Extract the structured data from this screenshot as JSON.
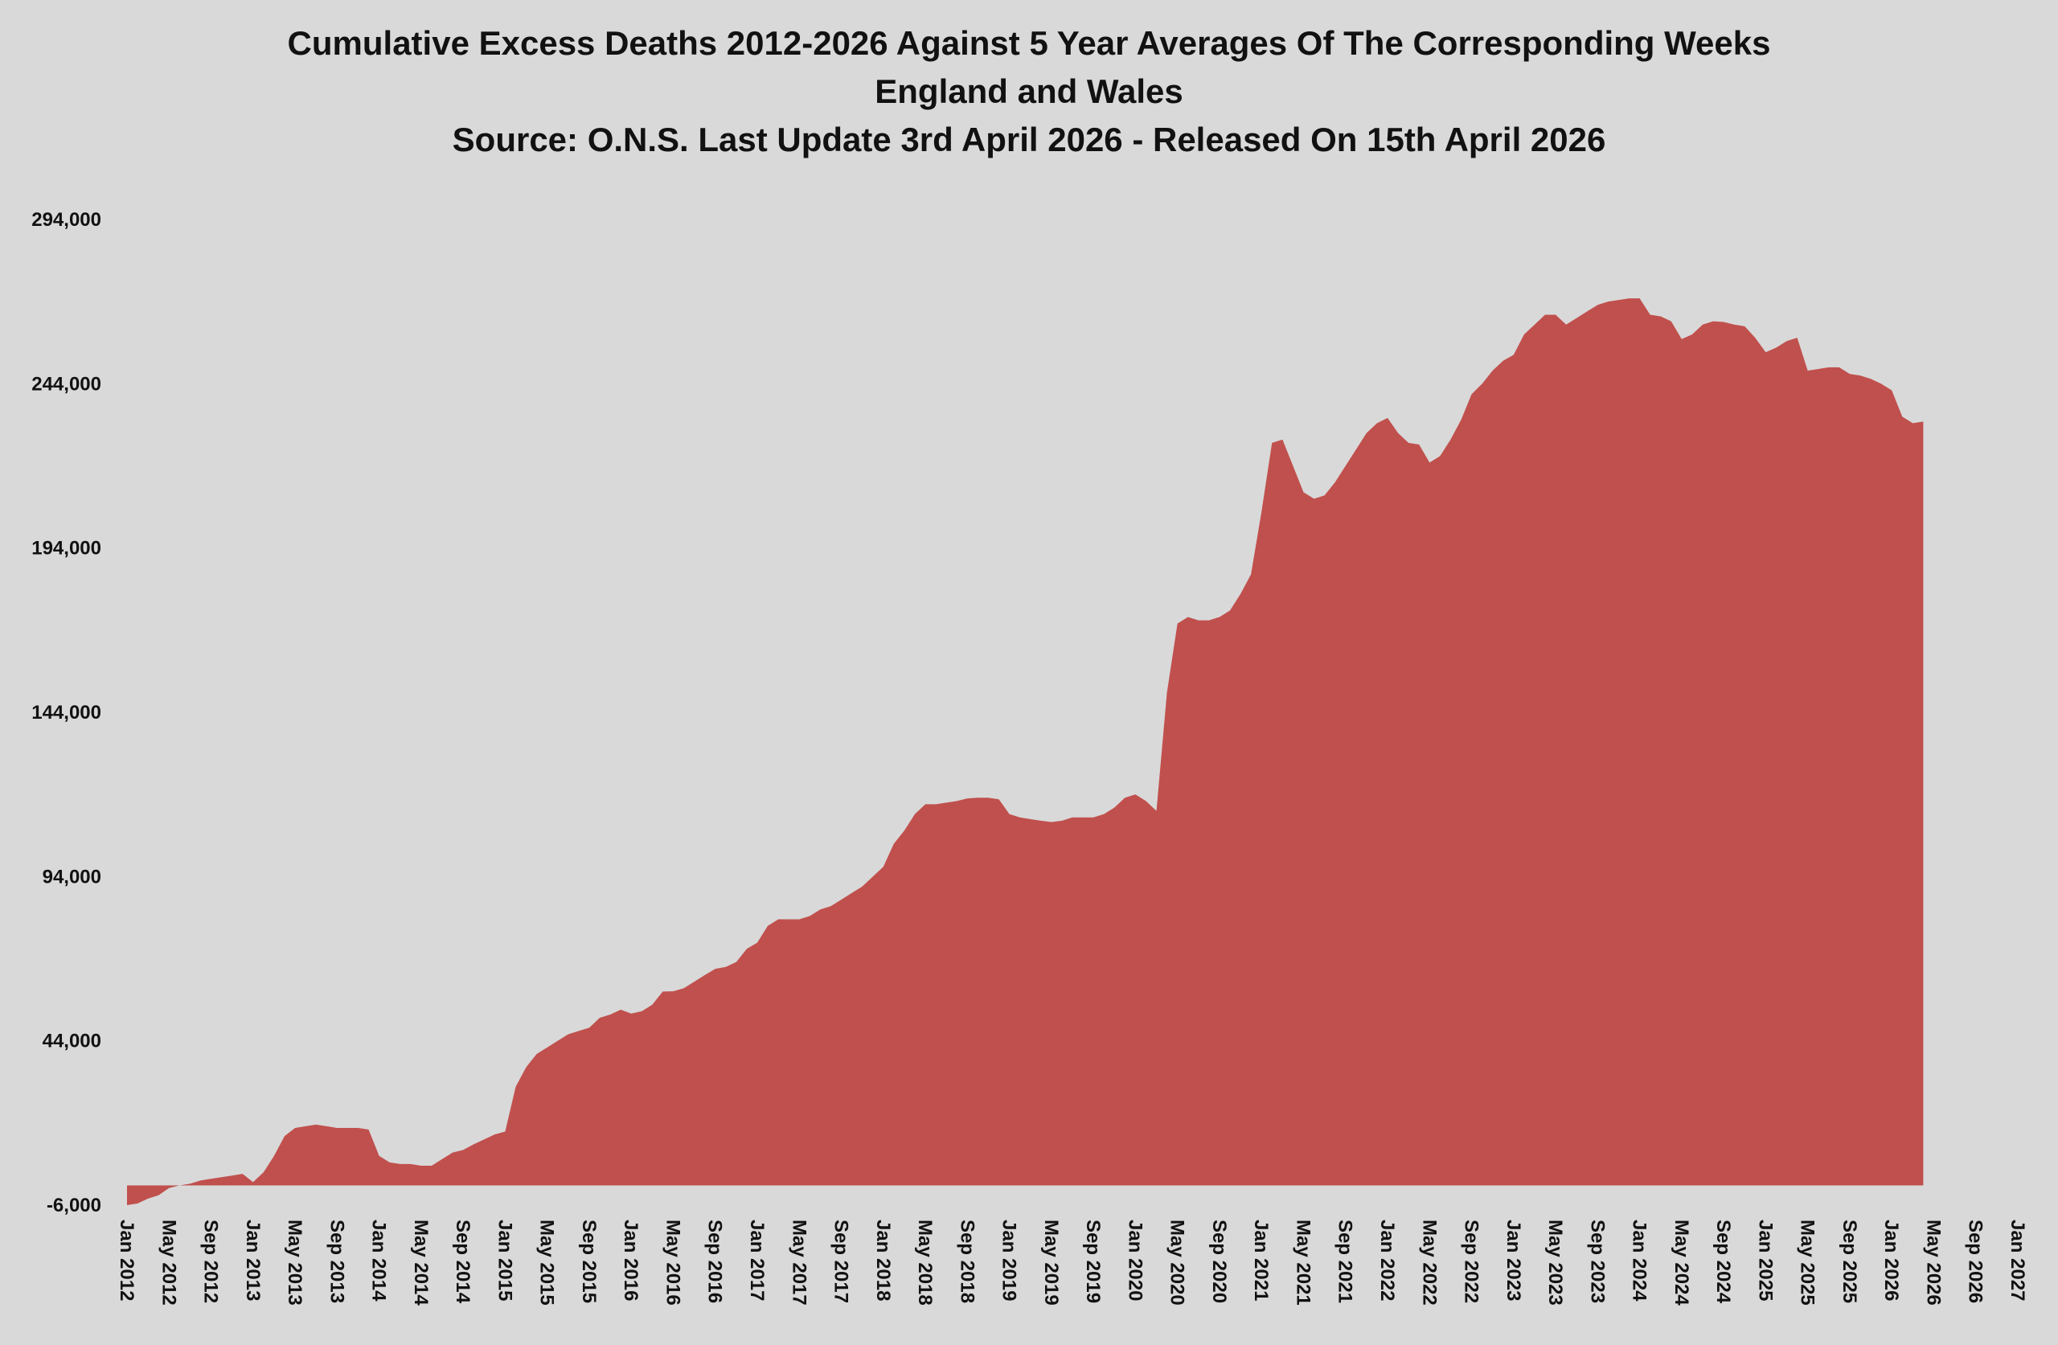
{
  "chart_data": {
    "type": "area",
    "title": "Cumulative Excess Deaths 2012-2026 Against 5 Year Averages Of The Corresponding Weeks",
    "subtitle": "England and Wales",
    "source": "Source: O.N.S. Last Update 3rd April 2026 - Released On 15th April 2026",
    "color": "#c0504d",
    "x": [
      "Jan 2012",
      "Feb 2012",
      "Mar 2012",
      "Apr 2012",
      "May 2012",
      "Jun 2012",
      "Jul 2012",
      "Aug 2012",
      "Sep 2012",
      "Oct 2012",
      "Nov 2012",
      "Dec 2012",
      "Jan 2013",
      "Feb 2013",
      "Mar 2013",
      "Apr 2013",
      "May 2013",
      "Jun 2013",
      "Jul 2013",
      "Aug 2013",
      "Sep 2013",
      "Oct 2013",
      "Nov 2013",
      "Dec 2013",
      "Jan 2014",
      "Feb 2014",
      "Mar 2014",
      "Apr 2014",
      "May 2014",
      "Jun 2014",
      "Jul 2014",
      "Aug 2014",
      "Sep 2014",
      "Oct 2014",
      "Nov 2014",
      "Dec 2014",
      "Jan 2015",
      "Feb 2015",
      "Mar 2015",
      "Apr 2015",
      "May 2015",
      "Jun 2015",
      "Jul 2015",
      "Aug 2015",
      "Sep 2015",
      "Oct 2015",
      "Nov 2015",
      "Dec 2015",
      "Jan 2016",
      "Feb 2016",
      "Mar 2016",
      "Apr 2016",
      "May 2016",
      "Jun 2016",
      "Jul 2016",
      "Aug 2016",
      "Sep 2016",
      "Oct 2016",
      "Nov 2016",
      "Dec 2016",
      "Jan 2017",
      "Feb 2017",
      "Mar 2017",
      "Apr 2017",
      "May 2017",
      "Jun 2017",
      "Jul 2017",
      "Aug 2017",
      "Sep 2017",
      "Oct 2017",
      "Nov 2017",
      "Dec 2017",
      "Jan 2018",
      "Feb 2018",
      "Mar 2018",
      "Apr 2018",
      "May 2018",
      "Jun 2018",
      "Jul 2018",
      "Aug 2018",
      "Sep 2018",
      "Oct 2018",
      "Nov 2018",
      "Dec 2018",
      "Jan 2019",
      "Feb 2019",
      "Mar 2019",
      "Apr 2019",
      "May 2019",
      "Jun 2019",
      "Jul 2019",
      "Aug 2019",
      "Sep 2019",
      "Oct 2019",
      "Nov 2019",
      "Dec 2019",
      "Jan 2020",
      "Feb 2020",
      "Mar 2020",
      "Apr 2020",
      "May 2020",
      "Jun 2020",
      "Jul 2020",
      "Aug 2020",
      "Sep 2020",
      "Oct 2020",
      "Nov 2020",
      "Dec 2020",
      "Jan 2021",
      "Feb 2021",
      "Mar 2021",
      "Apr 2021",
      "May 2021",
      "Jun 2021",
      "Jul 2021",
      "Aug 2021",
      "Sep 2021",
      "Oct 2021",
      "Nov 2021",
      "Dec 2021",
      "Jan 2022",
      "Feb 2022",
      "Mar 2022",
      "Apr 2022",
      "May 2022",
      "Jun 2022",
      "Jul 2022",
      "Aug 2022",
      "Sep 2022",
      "Oct 2022",
      "Nov 2022",
      "Dec 2022",
      "Jan 2023",
      "Feb 2023",
      "Mar 2023",
      "Apr 2023",
      "May 2023",
      "Jun 2023",
      "Jul 2023",
      "Aug 2023",
      "Sep 2023",
      "Oct 2023",
      "Nov 2023",
      "Dec 2023",
      "Jan 2024",
      "Feb 2024",
      "Mar 2024",
      "Apr 2024",
      "May 2024",
      "Jun 2024",
      "Jul 2024",
      "Aug 2024",
      "Sep 2024",
      "Oct 2024",
      "Nov 2024",
      "Dec 2024",
      "Jan 2025",
      "Feb 2025",
      "Mar 2025",
      "Apr 2025",
      "May 2025",
      "Jun 2025",
      "Jul 2025",
      "Aug 2025",
      "Sep 2025",
      "Oct 2025",
      "Nov 2025",
      "Dec 2025",
      "Jan 2026",
      "Feb 2026",
      "Mar 2026",
      "Apr 2026"
    ],
    "values": [
      -6000,
      -5500,
      -4000,
      -3000,
      -800,
      0,
      500,
      1500,
      2000,
      2500,
      3000,
      3500,
      1000,
      4000,
      9000,
      15000,
      17500,
      18000,
      18500,
      18000,
      17500,
      17500,
      17500,
      17000,
      9000,
      7000,
      6500,
      6500,
      6000,
      6000,
      8000,
      10000,
      10800,
      12500,
      14000,
      15500,
      16400,
      30000,
      36000,
      40000,
      42000,
      44000,
      46000,
      47000,
      48000,
      51000,
      52000,
      53500,
      52300,
      53000,
      55000,
      59000,
      59100,
      60000,
      62000,
      64000,
      65900,
      66500,
      68000,
      72000,
      73900,
      79000,
      81000,
      81000,
      81000,
      82000,
      84000,
      85000,
      87000,
      89000,
      91000,
      94000,
      97000,
      104000,
      108000,
      113000,
      116000,
      116000,
      116500,
      117000,
      117800,
      118000,
      118000,
      117500,
      113000,
      112000,
      111500,
      111000,
      110600,
      111000,
      112000,
      112000,
      112000,
      113000,
      115000,
      118000,
      119000,
      117000,
      114000,
      150000,
      171000,
      173000,
      172000,
      172000,
      173000,
      175000,
      180000,
      186000,
      205000,
      226000,
      227000,
      219000,
      211000,
      209000,
      210000,
      214000,
      219000,
      224000,
      229000,
      232000,
      233600,
      229000,
      226000,
      225500,
      220000,
      222000,
      227000,
      233000,
      240800,
      244000,
      248000,
      251000,
      252800,
      259000,
      262000,
      265000,
      265000,
      262000,
      264000,
      266000,
      268000,
      269000,
      269500,
      270000,
      270000,
      265000,
      264500,
      263000,
      257600,
      259000,
      262000,
      263000,
      262800,
      262000,
      261500,
      258000,
      253600,
      255000,
      257000,
      258000,
      248000,
      248500,
      249000,
      249000,
      247000,
      246500,
      245500,
      244000,
      242000,
      234000,
      232000,
      232500
    ],
    "xlim": [
      "Jan 2012",
      "Jan 2027"
    ],
    "xticks": [
      "Jan 2012",
      "May 2012",
      "Sep 2012",
      "Jan 2013",
      "May 2013",
      "Sep 2013",
      "Jan 2014",
      "May 2014",
      "Sep 2014",
      "Jan 2015",
      "May 2015",
      "Sep 2015",
      "Jan 2016",
      "May 2016",
      "Sep 2016",
      "Jan 2017",
      "May 2017",
      "Sep 2017",
      "Jan 2018",
      "May 2018",
      "Sep 2018",
      "Jan 2019",
      "May 2019",
      "Sep 2019",
      "Jan 2020",
      "May 2020",
      "Sep 2020",
      "Jan 2021",
      "May 2021",
      "Sep 2021",
      "Jan 2022",
      "May 2022",
      "Sep 2022",
      "Jan 2023",
      "May 2023",
      "Sep 2023",
      "Jan 2024",
      "May 2024",
      "Sep 2024",
      "Jan 2025",
      "May 2025",
      "Sep 2025",
      "Jan 2026",
      "May 2026",
      "Sep 2026",
      "Jan 2027"
    ],
    "ylim": [
      -6000,
      294000
    ],
    "yticks": [
      {
        "value": -6000,
        "label": "-6,000"
      },
      {
        "value": 44000,
        "label": "44,000"
      },
      {
        "value": 94000,
        "label": "94,000"
      },
      {
        "value": 144000,
        "label": "144,000"
      },
      {
        "value": 194000,
        "label": "194,000"
      },
      {
        "value": 244000,
        "label": "244,000"
      },
      {
        "value": 294000,
        "label": "294,000"
      }
    ],
    "grid": false
  }
}
